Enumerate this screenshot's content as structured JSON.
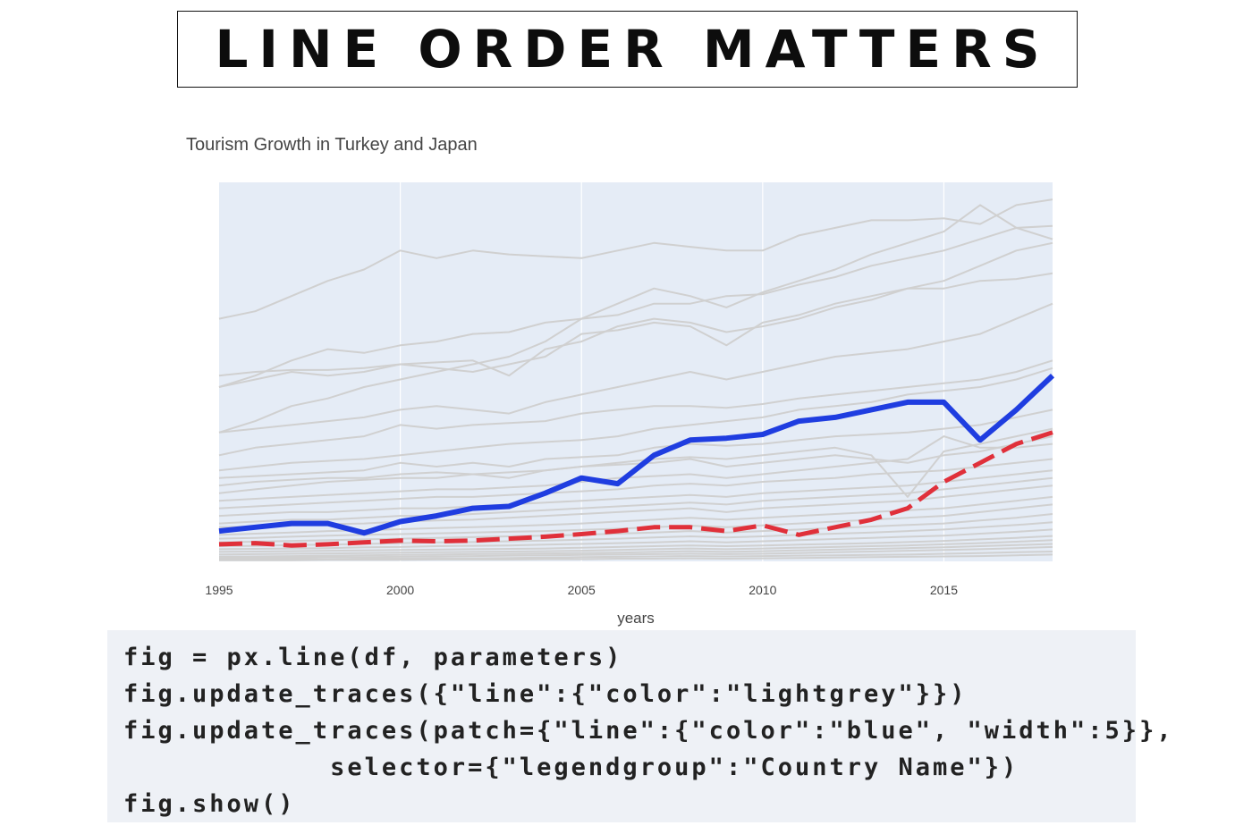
{
  "banner": {
    "title": "LINE ORDER MATTERS"
  },
  "chart_data": {
    "type": "line",
    "title": "Tourism Growth in Turkey and Japan",
    "xlabel": "years",
    "ylabel": "",
    "xlim": [
      1995,
      2018
    ],
    "ylim": [
      0,
      100
    ],
    "x_ticks": [
      "1995",
      "2000",
      "2005",
      "2010",
      "2015"
    ],
    "x_tick_values": [
      1995,
      2000,
      2005,
      2010,
      2015
    ],
    "years": [
      1995,
      1996,
      1997,
      1998,
      1999,
      2000,
      2001,
      2002,
      2003,
      2004,
      2005,
      2006,
      2007,
      2008,
      2009,
      2010,
      2011,
      2012,
      2013,
      2014,
      2015,
      2016,
      2017,
      2018
    ],
    "grid": true,
    "legend": "none",
    "colors": {
      "plot_bg": "#e5ecf6",
      "grid": "#ffffff",
      "background_series": "#d0d0d0",
      "highlight_blue": "#1f3de0",
      "highlight_red": "#e0303a",
      "title_text": "#444444",
      "tick_text": "#444444"
    },
    "highlight_series": [
      {
        "values": [
          8,
          9,
          10,
          10,
          7.5,
          10.5,
          12,
          14,
          14.5,
          18,
          22,
          20.5,
          28,
          32,
          32.5,
          33.5,
          37,
          38,
          40,
          42,
          42,
          32,
          40,
          49
        ]
      },
      {
        "values": [
          4.5,
          4.8,
          4.2,
          4.5,
          5,
          5.5,
          5.3,
          5.5,
          6,
          6.5,
          7.2,
          8,
          9,
          9,
          8,
          9.5,
          7,
          9,
          11,
          14,
          21,
          26,
          31,
          34
        ]
      }
    ],
    "background_series": [
      {
        "values": [
          64,
          66,
          70,
          74,
          77,
          82,
          80,
          82,
          81,
          80.5,
          80,
          82,
          84,
          83,
          82,
          82,
          86,
          88,
          90,
          90,
          90.5,
          89,
          94,
          95.5
        ]
      },
      {
        "values": [
          46,
          49,
          53,
          56,
          55,
          57,
          58,
          60,
          60.5,
          63,
          64,
          65,
          68,
          68,
          70,
          70.5,
          73,
          75,
          78,
          80,
          82,
          85,
          88,
          88.5
        ]
      },
      {
        "values": [
          34,
          37,
          41,
          43,
          46,
          48,
          50,
          52,
          54,
          58,
          64,
          68,
          72,
          70,
          67,
          71,
          74,
          77,
          81,
          84,
          87,
          94,
          88,
          85
        ]
      },
      {
        "values": [
          46,
          48,
          50,
          49,
          50,
          52,
          51,
          50,
          52,
          54,
          60,
          61,
          63,
          62,
          57,
          63,
          65,
          68,
          70,
          72,
          72,
          74,
          74.5,
          76
        ]
      },
      {
        "values": [
          49,
          50,
          50.5,
          50.5,
          51,
          52,
          52.5,
          53,
          49,
          56,
          58,
          62,
          64,
          63,
          60.5,
          62,
          64,
          67,
          69,
          72,
          74,
          78,
          82,
          84
        ]
      },
      {
        "values": [
          34,
          35,
          36,
          37,
          38,
          40,
          41,
          40,
          39,
          42,
          44,
          46,
          48,
          50,
          48,
          50,
          52,
          54,
          55,
          56,
          58,
          60,
          64,
          68
        ]
      },
      {
        "values": [
          24,
          25,
          26,
          26.5,
          27,
          28,
          29,
          30,
          31,
          31.5,
          32,
          33,
          35,
          36,
          37,
          38,
          40,
          41,
          42,
          44,
          45,
          46,
          48,
          51
        ]
      },
      {
        "values": [
          28,
          30,
          31,
          32,
          33,
          36,
          35,
          36,
          36.5,
          37,
          39,
          40,
          41,
          41,
          40.5,
          41.5,
          43,
          44,
          45,
          46,
          47,
          48,
          50,
          53
        ]
      },
      {
        "values": [
          22,
          22.5,
          23,
          23.5,
          24,
          26,
          25,
          26,
          25,
          27,
          27.5,
          28,
          30,
          31,
          30.5,
          31,
          32,
          33,
          33.5,
          34,
          35,
          36,
          38,
          40
        ]
      },
      {
        "values": [
          20,
          21,
          21.5,
          22,
          22,
          23,
          23.5,
          23,
          23.5,
          24,
          25,
          26,
          27,
          27.5,
          27,
          28,
          29,
          30,
          28,
          17,
          29,
          31,
          33,
          35
        ]
      },
      {
        "values": [
          18,
          19,
          20,
          21,
          21.5,
          22,
          22,
          23,
          22,
          24,
          25,
          25.5,
          26,
          27,
          25,
          26,
          27,
          28,
          27,
          26,
          28,
          29,
          31,
          33
        ]
      },
      {
        "values": [
          16,
          16.5,
          17,
          17.5,
          18,
          18.5,
          19,
          19,
          19.5,
          20,
          21,
          22,
          22.5,
          23,
          22,
          23,
          24,
          25,
          26,
          27,
          33,
          30,
          30,
          31
        ]
      },
      {
        "values": [
          14,
          14.5,
          15,
          15.5,
          16,
          16.5,
          17,
          17,
          17.5,
          18,
          18.5,
          19,
          20,
          20.5,
          20,
          21,
          21.5,
          22,
          23,
          23.5,
          24,
          25,
          26,
          27
        ]
      },
      {
        "values": [
          12,
          12.5,
          13,
          13,
          13.5,
          14,
          14,
          14.5,
          15,
          15.5,
          16,
          16.5,
          17,
          17.5,
          17,
          18,
          18.5,
          19,
          19.5,
          20,
          21,
          22,
          23,
          24
        ]
      },
      {
        "values": [
          10,
          10.5,
          11,
          11,
          11.5,
          12,
          12,
          12.5,
          13,
          13.5,
          14,
          14.5,
          15,
          15.5,
          15,
          16,
          16.5,
          17,
          17.5,
          18,
          19,
          20,
          21,
          22
        ]
      },
      {
        "values": [
          9,
          9.2,
          9.5,
          9.8,
          10,
          10.5,
          10.8,
          11,
          11.5,
          12,
          12.5,
          13,
          13.5,
          14,
          13,
          14,
          14.5,
          15,
          15.5,
          16,
          17,
          18,
          19,
          20
        ]
      },
      {
        "values": [
          7,
          7.3,
          7.6,
          8,
          8.2,
          8.5,
          8.8,
          9,
          9.3,
          9.6,
          10,
          10.5,
          11,
          11.5,
          11,
          11.5,
          12,
          12.5,
          13,
          13.5,
          14,
          15,
          16,
          17
        ]
      },
      {
        "values": [
          6,
          6.2,
          6.5,
          6.8,
          7,
          7.2,
          7.4,
          7.6,
          7.8,
          8,
          8.3,
          8.6,
          9,
          9.4,
          9,
          9.5,
          10,
          10.5,
          11,
          11.5,
          12,
          13,
          14,
          15
        ]
      },
      {
        "values": [
          5,
          5.2,
          5.4,
          5.6,
          5.8,
          6,
          6.2,
          6.4,
          6.6,
          6.8,
          7,
          7.3,
          7.6,
          8,
          7.6,
          8,
          8.4,
          8.8,
          9.2,
          9.6,
          10,
          10.8,
          11.5,
          12.5
        ]
      },
      {
        "values": [
          4,
          4.1,
          4.3,
          4.4,
          4.6,
          4.8,
          5,
          5.1,
          5.3,
          5.5,
          5.7,
          6,
          6.3,
          6.6,
          6.3,
          6.6,
          7,
          7.3,
          7.6,
          8,
          8.4,
          9,
          9.6,
          10.3
        ]
      },
      {
        "values": [
          3.2,
          3.3,
          3.4,
          3.5,
          3.7,
          3.8,
          4,
          4.1,
          4.2,
          4.4,
          4.6,
          4.8,
          5,
          5.3,
          5,
          5.3,
          5.6,
          5.9,
          6.2,
          6.5,
          6.8,
          7.3,
          7.8,
          8.4
        ]
      },
      {
        "values": [
          2.5,
          2.6,
          2.7,
          2.8,
          2.9,
          3,
          3.1,
          3.2,
          3.3,
          3.4,
          3.6,
          3.8,
          4,
          4.2,
          4,
          4.2,
          4.4,
          4.6,
          4.8,
          5.1,
          5.4,
          5.8,
          6.2,
          6.7
        ]
      },
      {
        "values": [
          1.8,
          1.9,
          2,
          2.1,
          2.2,
          2.3,
          2.4,
          2.5,
          2.6,
          2.7,
          2.8,
          3,
          3.2,
          3.4,
          3.2,
          3.4,
          3.6,
          3.8,
          4,
          4.2,
          4.5,
          4.8,
          5.2,
          5.6
        ]
      },
      {
        "values": [
          1.2,
          1.3,
          1.4,
          1.5,
          1.6,
          1.7,
          1.8,
          1.9,
          2,
          2.1,
          2.2,
          2.3,
          2.5,
          2.7,
          2.5,
          2.7,
          2.9,
          3.1,
          3.3,
          3.5,
          3.7,
          4,
          4.3,
          4.6
        ]
      },
      {
        "values": [
          0.8,
          0.9,
          1,
          1.1,
          1.1,
          1.2,
          1.3,
          1.4,
          1.5,
          1.6,
          1.7,
          1.8,
          1.9,
          2,
          1.9,
          2,
          2.2,
          2.4,
          2.6,
          2.8,
          3,
          3.2,
          3.5,
          3.8
        ]
      },
      {
        "values": [
          0.5,
          0.5,
          0.6,
          0.6,
          0.7,
          0.7,
          0.8,
          0.8,
          0.9,
          1,
          1.1,
          1.2,
          1.3,
          1.4,
          1.3,
          1.4,
          1.5,
          1.6,
          1.7,
          1.8,
          2,
          2.2,
          2.4,
          2.6
        ]
      },
      {
        "values": [
          0.3,
          0.3,
          0.3,
          0.4,
          0.4,
          0.4,
          0.5,
          0.5,
          0.5,
          0.6,
          0.6,
          0.7,
          0.7,
          0.8,
          0.7,
          0.8,
          0.9,
          1,
          1.1,
          1.2,
          1.3,
          1.4,
          1.6,
          1.8
        ]
      }
    ]
  },
  "code": {
    "lines": [
      "fig = px.line(df, parameters)",
      "fig.update_traces({\"line\":{\"color\":\"lightgrey\"}})",
      "fig.update_traces(patch={\"line\":{\"color\":\"blue\", \"width\":5}},",
      "            selector={\"legendgroup\":\"Country Name\"})",
      "fig.show()"
    ]
  }
}
